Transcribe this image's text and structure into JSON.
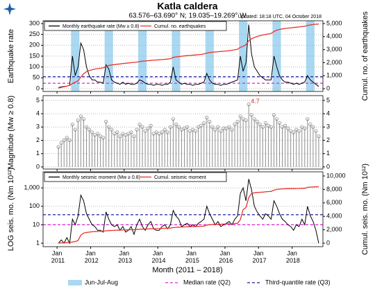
{
  "header": {
    "title": "Katla caldera",
    "subtitle": "63.576–63.690° N; 19.035–19.269° W",
    "updated": "Updated: 18:18 UTC, 04 October 2018"
  },
  "shading": {
    "name": "Jun-Jul-Aug",
    "color": "#a8d8f2",
    "spans": [
      [
        "2011-06",
        "2011-08"
      ],
      [
        "2012-06",
        "2012-08"
      ],
      [
        "2013-06",
        "2013-08"
      ],
      [
        "2014-06",
        "2014-08"
      ],
      [
        "2015-06",
        "2015-08"
      ],
      [
        "2016-06",
        "2016-08"
      ],
      [
        "2017-06",
        "2017-08"
      ],
      [
        "2018-06",
        "2018-08"
      ]
    ]
  },
  "median_line": {
    "name": "Median rate (Q2)",
    "color": "#e020e0"
  },
  "q3_line": {
    "name": "Third-quantile rate (Q3)",
    "color": "#1a1a9a"
  },
  "chart_data": {
    "type": "multi-panel",
    "xlabel": "Month (2011 – 2018)",
    "xlim": [
      "2010-08",
      "2018-12"
    ],
    "xticks": [
      {
        "value": "2011-01",
        "label": "Jan 2011"
      },
      {
        "value": "2012-01",
        "label": "Jan 2012"
      },
      {
        "value": "2013-01",
        "label": "Jan 2013"
      },
      {
        "value": "2014-01",
        "label": "Jan 2014"
      },
      {
        "value": "2015-01",
        "label": "Jan 2015"
      },
      {
        "value": "2016-01",
        "label": "Jan 2016"
      },
      {
        "value": "2017-01",
        "label": "Jan 2017"
      },
      {
        "value": "2018-01",
        "label": "Jan 2018"
      }
    ],
    "x": [
      "2011-01",
      "2011-02",
      "2011-03",
      "2011-04",
      "2011-05",
      "2011-06",
      "2011-07",
      "2011-08",
      "2011-09",
      "2011-10",
      "2011-11",
      "2011-12",
      "2012-01",
      "2012-02",
      "2012-03",
      "2012-04",
      "2012-05",
      "2012-06",
      "2012-07",
      "2012-08",
      "2012-09",
      "2012-10",
      "2012-11",
      "2012-12",
      "2013-01",
      "2013-02",
      "2013-03",
      "2013-04",
      "2013-05",
      "2013-06",
      "2013-07",
      "2013-08",
      "2013-09",
      "2013-10",
      "2013-11",
      "2013-12",
      "2014-01",
      "2014-02",
      "2014-03",
      "2014-04",
      "2014-05",
      "2014-06",
      "2014-07",
      "2014-08",
      "2014-09",
      "2014-10",
      "2014-11",
      "2014-12",
      "2015-01",
      "2015-02",
      "2015-03",
      "2015-04",
      "2015-05",
      "2015-06",
      "2015-07",
      "2015-08",
      "2015-09",
      "2015-10",
      "2015-11",
      "2015-12",
      "2016-01",
      "2016-02",
      "2016-03",
      "2016-04",
      "2016-05",
      "2016-06",
      "2016-07",
      "2016-08",
      "2016-09",
      "2016-10",
      "2016-11",
      "2016-12",
      "2017-01",
      "2017-02",
      "2017-03",
      "2017-04",
      "2017-05",
      "2017-06",
      "2017-07",
      "2017-08",
      "2017-09",
      "2017-10",
      "2017-11",
      "2017-12",
      "2018-01",
      "2018-02",
      "2018-03",
      "2018-04",
      "2018-05",
      "2018-06",
      "2018-07",
      "2018-08",
      "2018-09",
      "2018-10"
    ],
    "panels": [
      {
        "type": "line",
        "ylabel": "Earthquake rate",
        "y2label": "Cumul. no. of earthquakes",
        "shaded": true,
        "legend": true,
        "ylim": [
          -13,
          313
        ],
        "yticks": [
          0,
          50,
          100,
          150,
          200,
          250,
          300
        ],
        "y2lim": [
          -213,
          5213
        ],
        "y2ticks": [
          0,
          {
            "value": 1000,
            "label": "1,000"
          },
          {
            "value": 2000,
            "label": "2,000"
          },
          {
            "value": 3000,
            "label": "3,000"
          },
          {
            "value": 4000,
            "label": "4,000"
          },
          {
            "value": 5000,
            "label": "5,000"
          }
        ],
        "median": 25,
        "q3": 55,
        "grid": true,
        "series": [
          {
            "name": "Monthly earthquake rate (Mw ≥ 0.8)",
            "color": "#000000",
            "values": [
              5,
              8,
              10,
              12,
              15,
              150,
              60,
              100,
              210,
              180,
              100,
              60,
              40,
              40,
              30,
              30,
              25,
              110,
              90,
              40,
              30,
              25,
              20,
              30,
              20,
              25,
              20,
              20,
              25,
              40,
              35,
              25,
              20,
              20,
              15,
              20,
              20,
              15,
              20,
              20,
              30,
              100,
              40,
              30,
              20,
              25,
              20,
              20,
              15,
              20,
              20,
              25,
              30,
              70,
              40,
              25,
              20,
              20,
              15,
              20,
              20,
              25,
              30,
              35,
              40,
              150,
              80,
              120,
              295,
              160,
              100,
              80,
              60,
              50,
              40,
              40,
              40,
              150,
              100,
              60,
              40,
              30,
              30,
              25,
              20,
              25,
              20,
              25,
              30,
              60,
              40,
              30,
              20,
              10
            ]
          },
          {
            "name": "Cumul. no. earthquakes",
            "color": "#e8322b",
            "axis": "y2",
            "values": [
              50,
              100,
              150,
              200,
              250,
              400,
              500,
              600,
              900,
              1150,
              1300,
              1400,
              1450,
              1500,
              1540,
              1570,
              1600,
              1700,
              1780,
              1820,
              1850,
              1880,
              1900,
              1930,
              1950,
              1980,
              2000,
              2020,
              2040,
              2080,
              2110,
              2130,
              2150,
              2170,
              2185,
              2200,
              2220,
              2235,
              2255,
              2275,
              2300,
              2400,
              2440,
              2470,
              2490,
              2515,
              2535,
              2555,
              2570,
              2590,
              2610,
              2635,
              2665,
              2735,
              2775,
              2800,
              2820,
              2840,
              2855,
              2875,
              2895,
              2920,
              2950,
              2985,
              3025,
              3175,
              3255,
              3375,
              3670,
              3830,
              3930,
              4010,
              4070,
              4120,
              4160,
              4200,
              4240,
              4390,
              4490,
              4550,
              4590,
              4620,
              4650,
              4675,
              4695,
              4720,
              4740,
              4765,
              4795,
              4855,
              4895,
              4925,
              4945,
              4955
            ]
          }
        ]
      },
      {
        "type": "stem",
        "ylabel": "Magnitude (Mw ≥ 0.8)",
        "ylim": [
          -0.16,
          5.36
        ],
        "yticks": [
          0,
          1,
          2,
          3,
          4,
          5
        ],
        "y2ticks": [
          0,
          1,
          2,
          3,
          4,
          5
        ],
        "grid": true,
        "annotations": [
          {
            "x": "2016-09",
            "value": 4.7,
            "color": "#e8322b"
          }
        ],
        "series": [
          {
            "color": "#8c8c8c",
            "values": [
              1.5,
              1.8,
              2.0,
              2.2,
              2.0,
              3.2,
              2.8,
              3.5,
              3.8,
              3.6,
              3.0,
              2.8,
              2.6,
              2.4,
              2.5,
              2.3,
              2.2,
              3.4,
              3.0,
              2.8,
              2.5,
              2.6,
              2.3,
              2.5,
              2.4,
              2.5,
              2.6,
              2.3,
              2.8,
              3.2,
              3.0,
              2.7,
              2.9,
              3.1,
              2.5,
              2.6,
              2.5,
              2.6,
              2.8,
              2.6,
              3.0,
              3.6,
              3.2,
              3.0,
              2.8,
              2.9,
              3.0,
              2.7,
              2.8,
              2.7,
              3.0,
              3.1,
              3.3,
              3.7,
              3.4,
              3.0,
              2.8,
              3.0,
              2.7,
              2.9,
              2.9,
              3.0,
              2.8,
              3.2,
              3.4,
              3.8,
              3.6,
              3.5,
              4.7,
              3.9,
              3.6,
              3.4,
              3.2,
              3.0,
              3.3,
              3.1,
              3.0,
              3.9,
              3.6,
              3.3,
              3.0,
              3.1,
              2.9,
              2.7,
              2.6,
              2.8,
              2.7,
              3.0,
              2.9,
              3.6,
              3.2,
              3.0,
              2.7,
              2.3
            ]
          }
        ]
      },
      {
        "type": "line",
        "log": true,
        "ylabel": "LOG seis. mo. (Nm 10¹²)",
        "y2label": "Cumul. seis. mo. (Nm 10¹²)",
        "legend": true,
        "xaxis": true,
        "ylim": [
          0.65,
          7400
        ],
        "yticks": [
          1,
          10,
          100,
          {
            "value": 1000,
            "label": "1,000"
          }
        ],
        "y2lim": [
          -515,
          10620
        ],
        "y2ticks": [
          0,
          {
            "value": 2000,
            "label": "2,000"
          },
          {
            "value": 4000,
            "label": "4,000"
          },
          {
            "value": 6000,
            "label": "6,000"
          },
          {
            "value": 8000,
            "label": "8,000"
          },
          {
            "value": 10000,
            "label": "10,000"
          }
        ],
        "median": 10,
        "q3": 35,
        "grid": true,
        "series": [
          {
            "name": "Monthly seismic moment (Mw ≥ 0.8)",
            "color": "#000000",
            "values": [
              1,
              1.5,
              1,
              2,
              1,
              20,
              10,
              30,
              400,
              200,
              40,
              20,
              10,
              8,
              5,
              5,
              4,
              50,
              20,
              10,
              8,
              10,
              5,
              8,
              4,
              5,
              8,
              3,
              10,
              20,
              8,
              5,
              10,
              15,
              6,
              5,
              5,
              8,
              10,
              6,
              10,
              60,
              30,
              20,
              8,
              10,
              12,
              8,
              10,
              8,
              12,
              15,
              20,
              100,
              40,
              20,
              10,
              15,
              8,
              10,
              12,
              15,
              10,
              20,
              30,
              500,
              1000,
              200,
              3000,
              800,
              100,
              50,
              30,
              20,
              40,
              30,
              20,
              200,
              100,
              40,
              20,
              15,
              10,
              8,
              5,
              10,
              8,
              20,
              10,
              100,
              30,
              15,
              5,
              1
            ]
          },
          {
            "name": "Cumul. seismic moment",
            "color": "#e8322b",
            "axis": "y2",
            "values": [
              20,
              40,
              60,
              80,
              100,
              200,
              250,
              400,
              1200,
              1500,
              1600,
              1650,
              1700,
              1720,
              1740,
              1760,
              1780,
              1850,
              1880,
              1900,
              1920,
              1940,
              1950,
              1970,
              1980,
              1990,
              2010,
              2020,
              2040,
              2070,
              2090,
              2100,
              2120,
              2150,
              2160,
              2170,
              2180,
              2200,
              2220,
              2230,
              2250,
              2320,
              2360,
              2390,
              2400,
              2420,
              2440,
              2450,
              2470,
              2480,
              2500,
              2520,
              2550,
              2700,
              2750,
              2780,
              2800,
              2820,
              2830,
              2850,
              2870,
              2890,
              2900,
              2930,
              2970,
              3500,
              5000,
              5300,
              6800,
              7400,
              7500,
              7550,
              7580,
              7600,
              7650,
              7680,
              7700,
              7900,
              8000,
              8050,
              8080,
              8100,
              8110,
              8120,
              8130,
              8140,
              8150,
              8170,
              8180,
              8300,
              8350,
              8370,
              8380,
              8400
            ]
          }
        ]
      }
    ]
  }
}
